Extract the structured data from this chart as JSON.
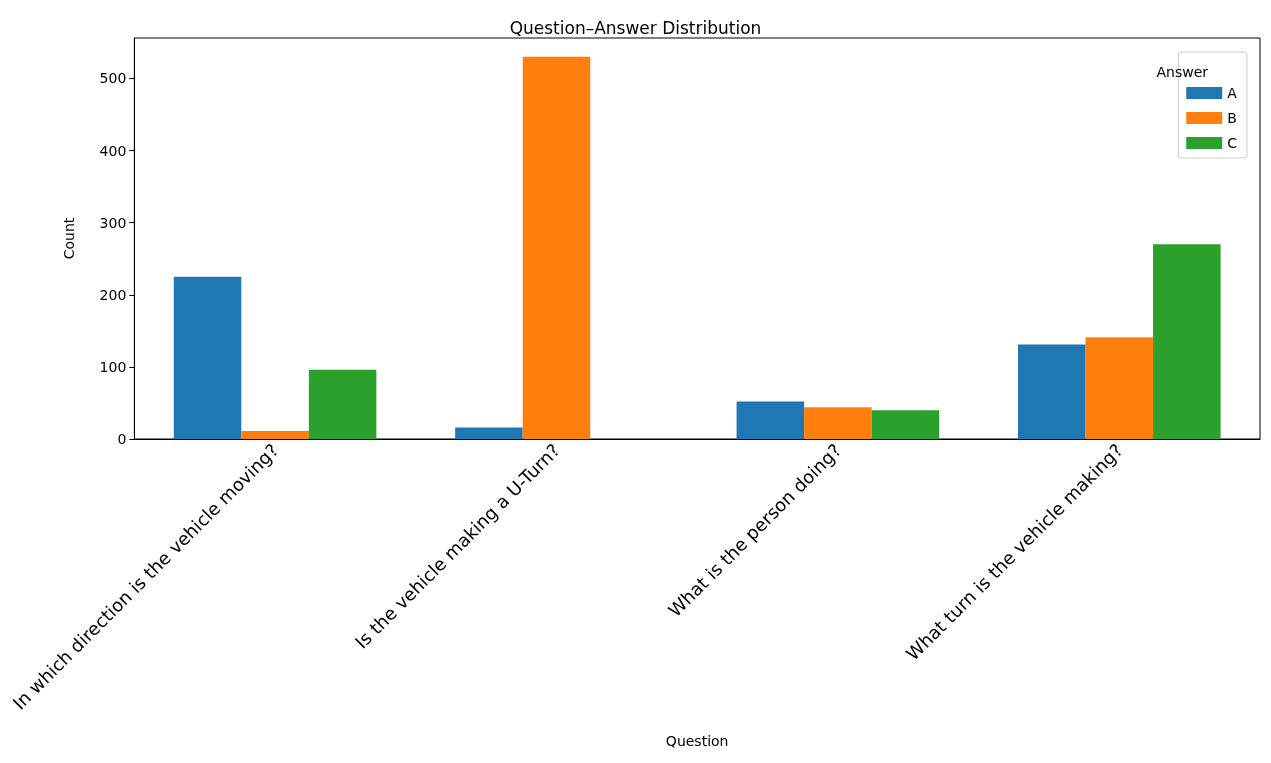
{
  "chart_data": {
    "type": "bar",
    "title": "Question–Answer Distribution",
    "xlabel": "Question",
    "ylabel": "Count",
    "legend_title": "Answer",
    "categories": [
      "In which direction is the vehicle moving?",
      "Is the vehicle making a U-Turn?",
      "What is the person doing?",
      "What turn is the vehicle making?"
    ],
    "series": [
      {
        "name": "A",
        "color": "#1f77b4",
        "values": [
          225,
          16,
          52,
          131
        ]
      },
      {
        "name": "B",
        "color": "#ff7f0e",
        "values": [
          11,
          530,
          44,
          141
        ]
      },
      {
        "name": "C",
        "color": "#2ca02c",
        "values": [
          96,
          0,
          40,
          270
        ]
      }
    ],
    "ylim": [
      0,
      556
    ],
    "yticks": [
      0,
      100,
      200,
      300,
      400,
      500
    ],
    "grid": false,
    "legend": "top right"
  }
}
